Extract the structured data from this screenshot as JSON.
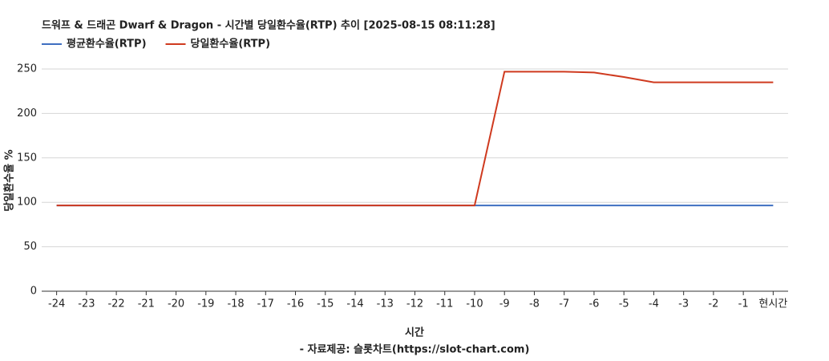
{
  "chart_data": {
    "type": "line",
    "title": "드워프 & 드래곤 Dwarf & Dragon - 시간별 당일환수율(RTP) 추이 [2025-08-15 08:11:28]",
    "x_label": "시간",
    "y_label": "당일환수율 %",
    "footer": "- 자료제공: 슬롯차트(https://slot-chart.com)",
    "categories": [
      "-24",
      "-23",
      "-22",
      "-21",
      "-20",
      "-19",
      "-18",
      "-17",
      "-16",
      "-15",
      "-14",
      "-13",
      "-12",
      "-11",
      "-10",
      "-9",
      "-8",
      "-7",
      "-6",
      "-5",
      "-4",
      "-3",
      "-2",
      "-1",
      "현시간"
    ],
    "series": [
      {
        "name": "평균환수율(RTP)",
        "color": "#3f6fc1",
        "values": [
          96.5,
          96.5,
          96.5,
          96.5,
          96.5,
          96.5,
          96.5,
          96.5,
          96.5,
          96.5,
          96.5,
          96.5,
          96.5,
          96.5,
          96.5,
          96.5,
          96.5,
          96.5,
          96.5,
          96.5,
          96.5,
          96.5,
          96.5,
          96.5,
          96.5
        ]
      },
      {
        "name": "당일환수율(RTP)",
        "color": "#cf3a1f",
        "values": [
          96.5,
          96.5,
          96.5,
          96.5,
          96.5,
          96.5,
          96.5,
          96.5,
          96.5,
          96.5,
          96.5,
          96.5,
          96.5,
          96.5,
          96.5,
          247,
          247,
          247,
          246,
          241,
          235,
          235,
          235,
          235,
          235
        ]
      }
    ],
    "ylim": [
      0,
      250
    ],
    "yticks": [
      0,
      50,
      100,
      150,
      200,
      250
    ],
    "grid": true
  }
}
